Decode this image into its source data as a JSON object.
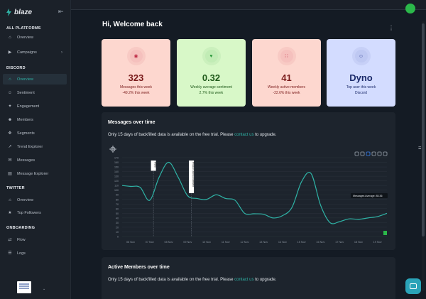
{
  "app": {
    "name": "blaze"
  },
  "sidebar": {
    "sections": [
      {
        "title": "ALL PLATFORMS",
        "items": [
          {
            "label": "Overview",
            "icon": "home-icon"
          },
          {
            "label": "Campaigns",
            "icon": "megaphone-icon",
            "has_chevron": true
          }
        ]
      },
      {
        "title": "DISCORD",
        "items": [
          {
            "label": "Overview",
            "icon": "home-icon",
            "active": true
          },
          {
            "label": "Sentiment",
            "icon": "smile-icon"
          },
          {
            "label": "Engagement",
            "icon": "engagement-icon"
          },
          {
            "label": "Members",
            "icon": "members-icon"
          },
          {
            "label": "Segments",
            "icon": "segments-icon"
          },
          {
            "label": "Trend Explorer",
            "icon": "trend-icon"
          },
          {
            "label": "Messages",
            "icon": "mail-icon"
          },
          {
            "label": "Message Explorer",
            "icon": "explorer-icon"
          }
        ]
      },
      {
        "title": "TWITTER",
        "items": [
          {
            "label": "Overview",
            "icon": "home-icon"
          },
          {
            "label": "Top Followers",
            "icon": "followers-icon"
          }
        ]
      },
      {
        "title": "ONBOARDING",
        "items": [
          {
            "label": "Flow",
            "icon": "flow-icon"
          },
          {
            "label": "Logs",
            "icon": "logs-icon"
          }
        ]
      }
    ]
  },
  "header": {
    "greeting": "Hi, Welcome back"
  },
  "cards": [
    {
      "value": "323",
      "label": "Messages this week",
      "sub": "-49.2% this week",
      "bg": "#fdd7cf",
      "fg": "#7a1b1b",
      "icon": "messages-icon",
      "icon_color": "#c0304a"
    },
    {
      "value": "0.32",
      "label": "Weekly average sentiment",
      "sub": "2.7% this week",
      "bg": "#d8f8c8",
      "fg": "#1f5a1a",
      "icon": "heart-icon",
      "icon_color": "#2e9b3e"
    },
    {
      "value": "41",
      "label": "Weekly active members",
      "sub": "-22.6% this week",
      "bg": "#fdd7cf",
      "fg": "#7a1b1b",
      "icon": "signal-icon",
      "icon_color": "#c0304a"
    },
    {
      "value": "Dyno",
      "label": "Top user this week",
      "sub": "Discord",
      "bg": "#d3dcff",
      "fg": "#1b2a6a",
      "icon": "user-icon",
      "icon_color": "#3a4a9a"
    }
  ],
  "panels": {
    "messages": {
      "title": "Messages over time",
      "note_prefix": "Only 15 days of backfilled data is available on the free trial. Please ",
      "note_link": "contact us",
      "note_suffix": " to upgrade."
    },
    "active": {
      "title": "Active Members over time",
      "note_prefix": "Only 15 days of backfilled data is available on the free trial. Please ",
      "note_link": "contact us",
      "note_suffix": " to upgrade."
    }
  },
  "chart_data": {
    "type": "line",
    "title": "",
    "xlabel": "",
    "ylabel": "",
    "ylim": [
      0,
      170
    ],
    "yticks": [
      0,
      10,
      20,
      30,
      40,
      50,
      60,
      70,
      80,
      90,
      100,
      110,
      120,
      130,
      140,
      150,
      160,
      170
    ],
    "categories": [
      "06 Nov",
      "07 Nov",
      "08 Nov",
      "09 Nov",
      "10 Nov",
      "11 Nov",
      "12 Nov",
      "13 Nov",
      "14 Nov",
      "15 Nov",
      "16 Nov",
      "17 Nov",
      "18 Nov",
      "19 Nov"
    ],
    "x": [
      -0.45,
      0,
      0.5,
      1,
      1.5,
      2,
      2.5,
      3,
      3.5,
      4,
      4.5,
      5,
      5.5,
      6,
      6.5,
      7,
      7.5,
      8,
      8.5,
      9,
      9.5,
      10,
      10.5,
      11,
      11.5,
      12,
      12.5,
      13,
      13.5
    ],
    "series": [
      {
        "color": "#2fb3a6",
        "values": [
          110,
          108,
          106,
          78,
          128,
          160,
          128,
          88,
          82,
          80,
          90,
          82,
          78,
          50,
          49,
          48,
          40,
          45,
          63,
          118,
          136,
          68,
          30,
          32,
          38,
          37,
          40,
          43,
          50
        ]
      }
    ],
    "annotations": [
      {
        "label": "Hello",
        "x": 1.2
      },
      {
        "label": "Product announcement",
        "x": 3.2
      }
    ],
    "average_label": "Messages Average: 85.36",
    "grid": true,
    "legend": "none"
  }
}
